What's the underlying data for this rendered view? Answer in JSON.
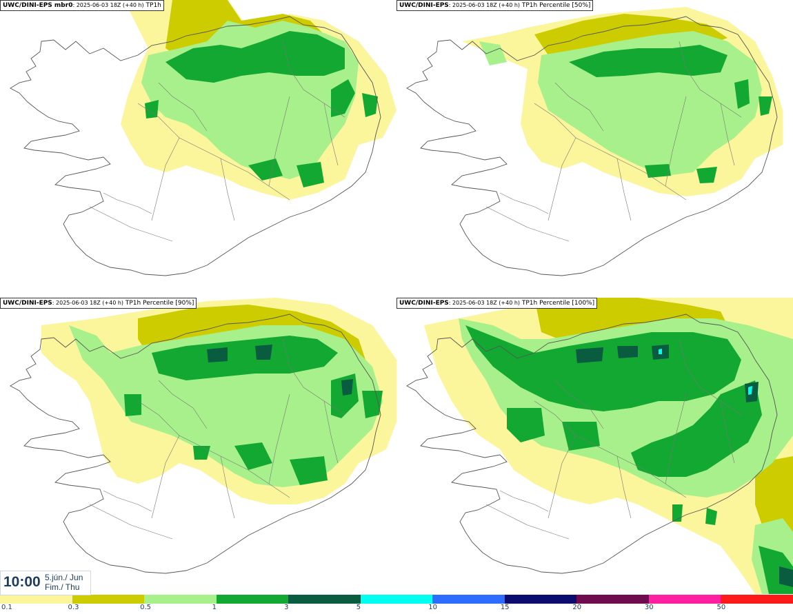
{
  "panels": [
    {
      "model": "UWC/DINI-EPS",
      "suffix": " mbr0",
      "run": ": 2025-06-03 18Z (+40 h)",
      "product": " TP1h"
    },
    {
      "model": "UWC/DINI-EPS",
      "suffix": "",
      "run": ": 2025-06-03 18Z (+40 h)",
      "product": " TP1h Percentile [50%]"
    },
    {
      "model": "UWC/DINI-EPS",
      "suffix": "",
      "run": ": 2025-06-03 18Z (+40 h)",
      "product": " TP1h Percentile [90%]"
    },
    {
      "model": "UWC/DINI-EPS",
      "suffix": "",
      "run": ": 2025-06-03 18Z (+40 h)",
      "product": " TP1h Percentile [100%]"
    }
  ],
  "time": {
    "clock": "10:00",
    "date_line1": "5.jún./ Jun",
    "date_line2": "Fim./ Thu"
  },
  "legend": {
    "ticks": [
      "0.1",
      "0.3",
      "0.5",
      "1",
      "3",
      "5",
      "10",
      "15",
      "20",
      "30",
      "50"
    ],
    "colors": [
      "#fbf59b",
      "#cccc00",
      "#a8f08c",
      "#12a832",
      "#0a5c41",
      "#00fff0",
      "#2e6cff",
      "#0c0c6e",
      "#6e0c4e",
      "#ff1fa0",
      "#ff1a1a"
    ]
  },
  "colors": {
    "light_yellow": "#fbf59b",
    "olive": "#cccc00",
    "light_green": "#a8f08c",
    "green": "#12a832",
    "dark_green": "#0a5c41",
    "cyan": "#00fff0"
  }
}
